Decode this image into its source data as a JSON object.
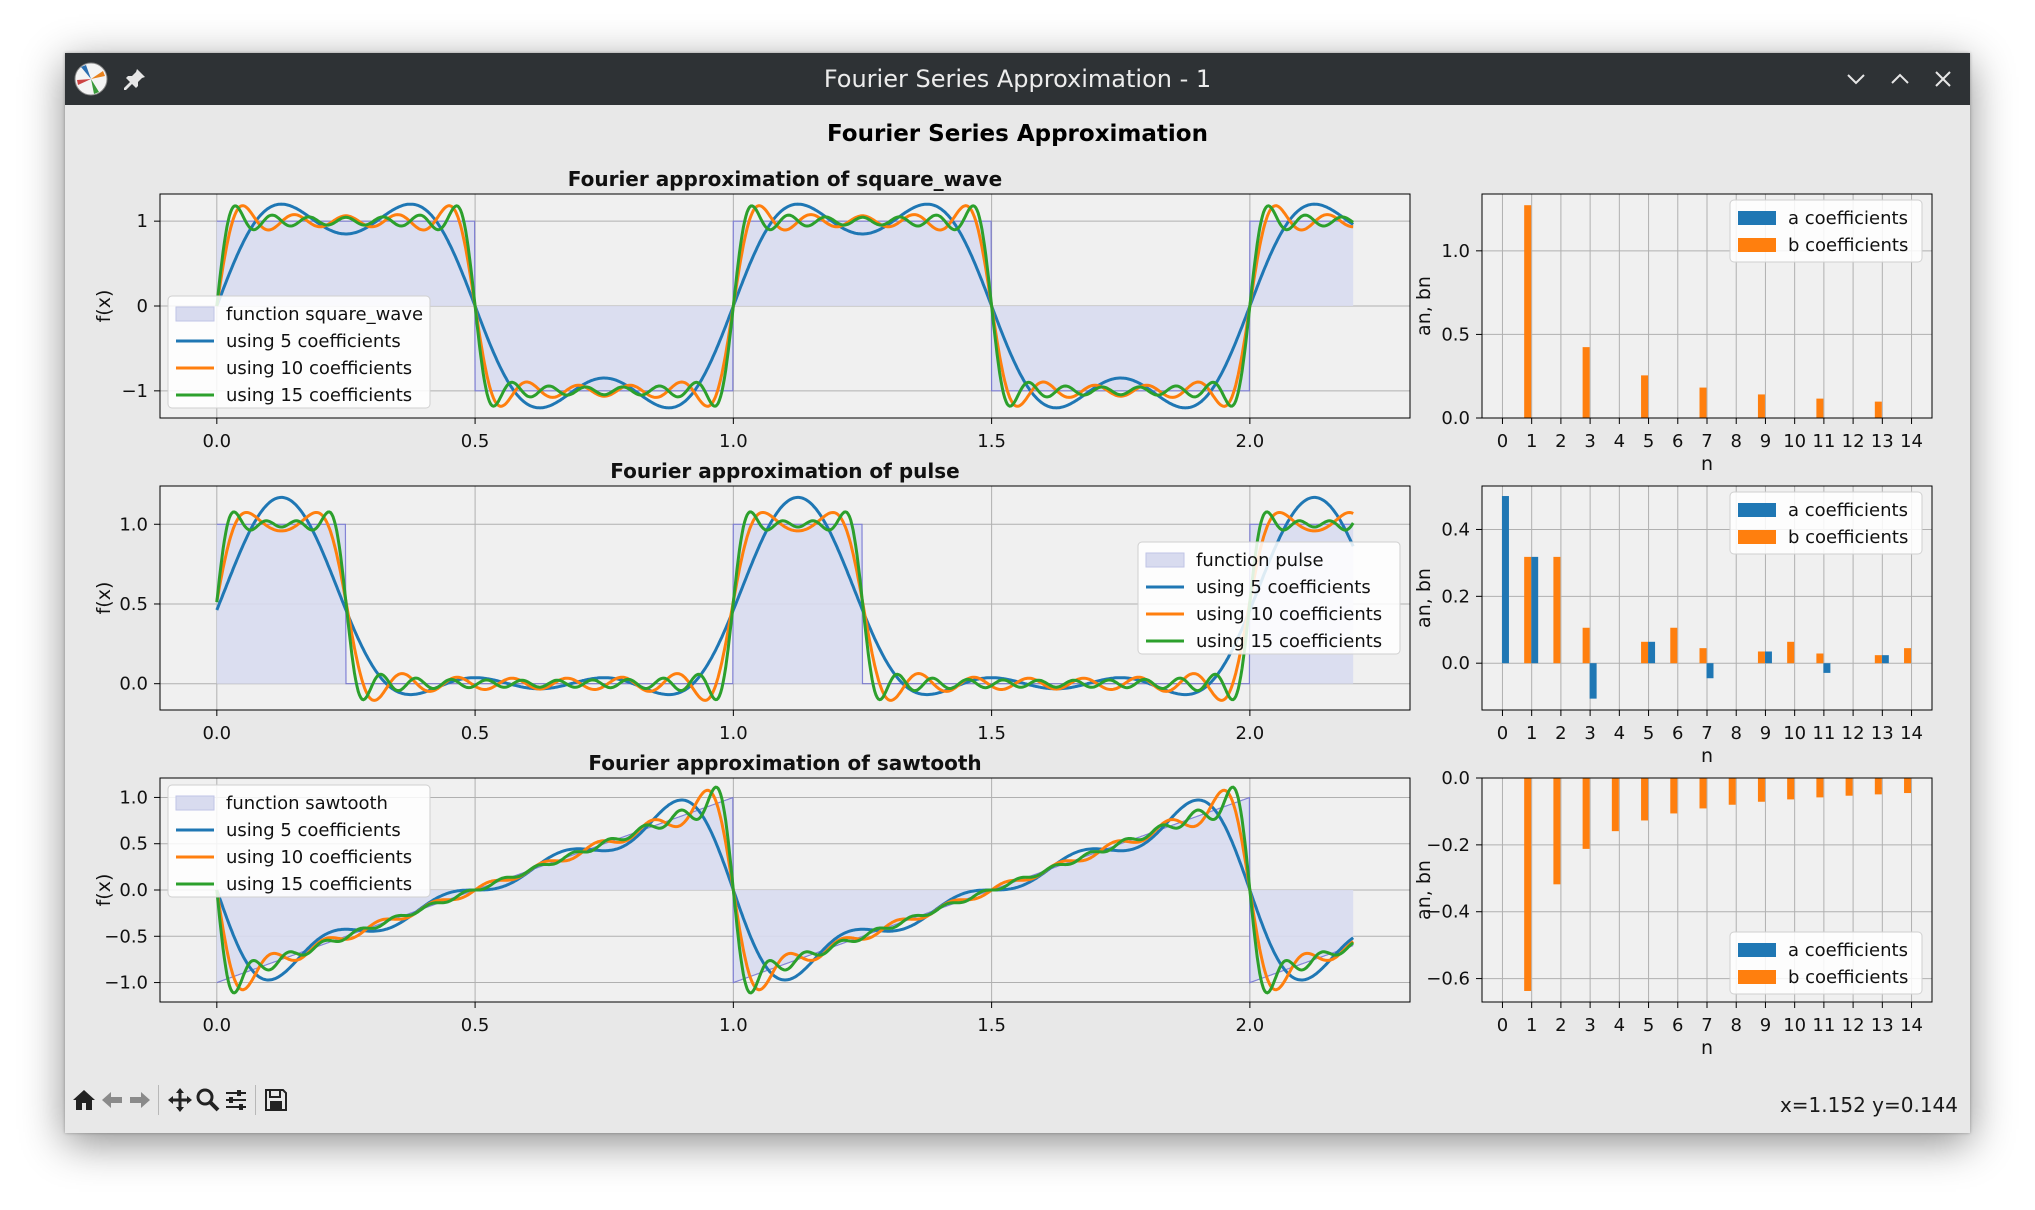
{
  "window": {
    "title": "Fourier Series Approximation - 1"
  },
  "figure": {
    "suptitle": "Fourier Series Approximation"
  },
  "status": {
    "coords": "x=1.152 y=0.144"
  },
  "colors": {
    "c5": "#1f77b4",
    "c10": "#ff7f0e",
    "c15": "#2ca02c",
    "fill": "#d8dbef",
    "fillEdge": "#6a6ad0"
  },
  "icons": [
    "app-icon",
    "pin-icon",
    "minimize-icon",
    "maximize-icon",
    "close-icon",
    "home-icon",
    "back-icon",
    "forward-icon",
    "pan-icon",
    "zoom-icon",
    "configure-icon",
    "save-icon"
  ],
  "chart_data": [
    {
      "type": "line",
      "title": "Fourier approximation of square_wave",
      "ylabel": "f(x)",
      "function": "square_wave",
      "xticks": [
        "0.0",
        "0.5",
        "1.0",
        "1.5",
        "2.0"
      ],
      "yticks": [
        "−1",
        "0",
        "1"
      ],
      "xlim": [
        -0.11,
        2.31
      ],
      "ylim": [
        -1.32,
        1.32
      ],
      "x_range": [
        0,
        2.2
      ],
      "period": 1,
      "n_coeffs": [
        5,
        10,
        15
      ],
      "legend": [
        "function square_wave",
        "using 5 coefficients",
        "using 10 coefficients",
        "using 15 coefficients"
      ],
      "legend_loc": "center-left"
    },
    {
      "type": "bar",
      "ylabel": "an, bn",
      "xlabel": "n",
      "categories": [
        "0",
        "1",
        "2",
        "3",
        "4",
        "5",
        "6",
        "7",
        "8",
        "9",
        "10",
        "11",
        "12",
        "13",
        "14"
      ],
      "series": [
        {
          "name": "a coefficients",
          "values": [
            0,
            0,
            0,
            0,
            0,
            0,
            0,
            0,
            0,
            0,
            0,
            0,
            0,
            0,
            0
          ]
        },
        {
          "name": "b coefficients",
          "values": [
            0,
            1.273,
            0,
            0.424,
            0,
            0.255,
            0,
            0.182,
            0,
            0.141,
            0,
            0.116,
            0,
            0.098,
            0
          ]
        }
      ],
      "yticks": [
        "0.0",
        "0.5",
        "1.0"
      ],
      "ylim": [
        0,
        1.34
      ],
      "legend_loc": "top-right"
    },
    {
      "type": "line",
      "title": "Fourier approximation of pulse",
      "ylabel": "f(x)",
      "function": "pulse",
      "xticks": [
        "0.0",
        "0.5",
        "1.0",
        "1.5",
        "2.0"
      ],
      "yticks": [
        "0.0",
        "0.5",
        "1.0"
      ],
      "xlim": [
        -0.11,
        2.31
      ],
      "ylim": [
        -0.165,
        1.24
      ],
      "x_range": [
        0,
        2.2
      ],
      "period": 1,
      "n_coeffs": [
        5,
        10,
        15
      ],
      "legend": [
        "function pulse",
        "using 5 coefficients",
        "using 10 coefficients",
        "using 15 coefficients"
      ],
      "legend_loc": "center-right"
    },
    {
      "type": "bar",
      "ylabel": "an, bn",
      "xlabel": "n",
      "categories": [
        "0",
        "1",
        "2",
        "3",
        "4",
        "5",
        "6",
        "7",
        "8",
        "9",
        "10",
        "11",
        "12",
        "13",
        "14"
      ],
      "series": [
        {
          "name": "a coefficients",
          "values": [
            0.5,
            0.318,
            0,
            -0.106,
            0,
            0.064,
            0,
            -0.045,
            0,
            0.035,
            0,
            -0.029,
            0,
            0.024,
            0
          ]
        },
        {
          "name": "b coefficients",
          "values": [
            0,
            0.318,
            0.318,
            0.106,
            0,
            0.064,
            0.106,
            0.045,
            0,
            0.035,
            0.064,
            0.029,
            0,
            0.024,
            0.045
          ]
        }
      ],
      "yticks": [
        "0.0",
        "0.2",
        "0.4"
      ],
      "ylim": [
        -0.14,
        0.53
      ],
      "legend_loc": "top-right"
    },
    {
      "type": "line",
      "title": "Fourier approximation of sawtooth",
      "ylabel": "f(x)",
      "function": "sawtooth",
      "xticks": [
        "0.0",
        "0.5",
        "1.0",
        "1.5",
        "2.0"
      ],
      "yticks": [
        "−1.0",
        "−0.5",
        "0.0",
        "0.5",
        "1.0"
      ],
      "xlim": [
        -0.11,
        2.31
      ],
      "ylim": [
        -1.21,
        1.21
      ],
      "x_range": [
        0,
        2.2
      ],
      "period": 1,
      "n_coeffs": [
        5,
        10,
        15
      ],
      "legend": [
        "function sawtooth",
        "using 5 coefficients",
        "using 10 coefficients",
        "using 15 coefficients"
      ],
      "legend_loc": "upper-left"
    },
    {
      "type": "bar",
      "ylabel": "an, bn",
      "xlabel": "n",
      "categories": [
        "0",
        "1",
        "2",
        "3",
        "4",
        "5",
        "6",
        "7",
        "8",
        "9",
        "10",
        "11",
        "12",
        "13",
        "14"
      ],
      "series": [
        {
          "name": "a coefficients",
          "values": [
            0,
            0,
            0,
            0,
            0,
            0,
            0,
            0,
            0,
            0,
            0,
            0,
            0,
            0,
            0
          ]
        },
        {
          "name": "b coefficients",
          "values": [
            0,
            -0.637,
            -0.318,
            -0.212,
            -0.159,
            -0.127,
            -0.106,
            -0.091,
            -0.08,
            -0.071,
            -0.064,
            -0.058,
            -0.053,
            -0.049,
            -0.045
          ]
        }
      ],
      "yticks": [
        "−0.6",
        "−0.4",
        "−0.2",
        "0.0"
      ],
      "ylim": [
        -0.67,
        0
      ],
      "legend_loc": "bottom-right"
    }
  ]
}
